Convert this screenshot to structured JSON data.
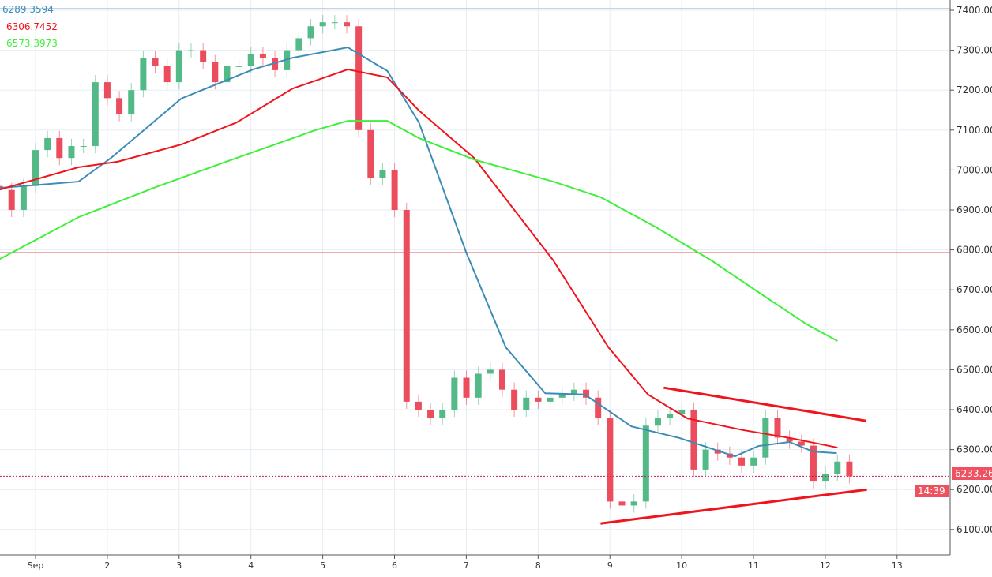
{
  "chart_data": {
    "type": "candlestick",
    "title": "",
    "xaxis": {
      "ticks": [
        {
          "day": 1,
          "label": "Sep"
        },
        {
          "day": 2,
          "label": "2"
        },
        {
          "day": 3,
          "label": "3"
        },
        {
          "day": 4,
          "label": "4"
        },
        {
          "day": 5,
          "label": "5"
        },
        {
          "day": 6,
          "label": "6"
        },
        {
          "day": 7,
          "label": "7"
        },
        {
          "day": 8,
          "label": "8"
        },
        {
          "day": 9,
          "label": "9"
        },
        {
          "day": 10,
          "label": "10"
        },
        {
          "day": 11,
          "label": "11"
        },
        {
          "day": 12,
          "label": "12"
        },
        {
          "day": 13,
          "label": "13"
        }
      ],
      "range_days": [
        0.5,
        14.1
      ]
    },
    "yaxis": {
      "ticks": [
        "6100.00",
        "6200.00",
        "6300.00",
        "6400.00",
        "6500.00",
        "6600.00",
        "6700.00",
        "6800.00",
        "6900.00",
        "7000.00",
        "7100.00",
        "7200.00",
        "7300.00",
        "7400.00"
      ],
      "range": [
        6035,
        7426
      ]
    },
    "grid": true,
    "candles": {
      "start_day": 0.5,
      "step_days": 0.1667,
      "first_open": 6960,
      "closes": [
        6950,
        6900,
        6960,
        7050,
        7080,
        7030,
        7060,
        7060,
        7220,
        7180,
        7140,
        7200,
        7280,
        7260,
        7220,
        7300,
        7300,
        7270,
        7220,
        7260,
        7260,
        7290,
        7280,
        7250,
        7300,
        7330,
        7360,
        7370,
        7370,
        7360,
        7100,
        6980,
        7000,
        6900,
        6420,
        6400,
        6380,
        6400,
        6480,
        6430,
        6490,
        6500,
        6450,
        6400,
        6430,
        6420,
        6430,
        6440,
        6450,
        6430,
        6380,
        6170,
        6160,
        6170,
        6360,
        6380,
        6390,
        6400,
        6250,
        6300,
        6290,
        6280,
        6260,
        6280,
        6380,
        6330,
        6320,
        6310,
        6220,
        6240,
        6270,
        6233
      ]
    },
    "up_color": "#53b987",
    "down_color": "#eb4d5c",
    "series": [
      {
        "name": "6289.3594",
        "color": "#3d8cb5",
        "points": [
          [
            0.5,
            6955
          ],
          [
            1.6,
            6971
          ],
          [
            2.05,
            7030
          ],
          [
            3.03,
            7179
          ],
          [
            4.03,
            7252
          ],
          [
            4.58,
            7281
          ],
          [
            5.35,
            7307
          ],
          [
            5.9,
            7248
          ],
          [
            6.34,
            7119
          ],
          [
            7.0,
            6793
          ],
          [
            7.55,
            6556
          ],
          [
            8.1,
            6441
          ],
          [
            8.65,
            6438
          ],
          [
            9.3,
            6358
          ],
          [
            9.97,
            6329
          ],
          [
            10.74,
            6283
          ],
          [
            11.07,
            6309
          ],
          [
            11.5,
            6319
          ],
          [
            11.83,
            6295
          ],
          [
            12.16,
            6291
          ]
        ]
      },
      {
        "name": "6306.7452",
        "color": "#f0151d",
        "points": [
          [
            0.5,
            6951
          ],
          [
            1.6,
            7007
          ],
          [
            2.15,
            7021
          ],
          [
            3.03,
            7064
          ],
          [
            3.8,
            7119
          ],
          [
            4.58,
            7204
          ],
          [
            5.35,
            7252
          ],
          [
            5.9,
            7232
          ],
          [
            6.34,
            7149
          ],
          [
            7.11,
            7030
          ],
          [
            8.21,
            6774
          ],
          [
            8.98,
            6556
          ],
          [
            9.53,
            6438
          ],
          [
            10.08,
            6378
          ],
          [
            10.85,
            6349
          ],
          [
            11.51,
            6329
          ],
          [
            12.17,
            6305
          ]
        ]
      },
      {
        "name": "6573.3973",
        "color": "#3ff03a",
        "points": [
          [
            0.5,
            6777
          ],
          [
            1.6,
            6882
          ],
          [
            2.7,
            6959
          ],
          [
            3.8,
            7030
          ],
          [
            4.9,
            7100
          ],
          [
            5.35,
            7123
          ],
          [
            5.9,
            7123
          ],
          [
            6.34,
            7080
          ],
          [
            7.11,
            7026
          ],
          [
            8.21,
            6971
          ],
          [
            8.87,
            6932
          ],
          [
            9.64,
            6857
          ],
          [
            10.41,
            6774
          ],
          [
            11.07,
            6694
          ],
          [
            11.73,
            6615
          ],
          [
            12.17,
            6572
          ]
        ]
      }
    ],
    "horizontal_lines": [
      {
        "price": 6793,
        "color": "#e01b1b"
      },
      {
        "price": 7404,
        "color": "#8aa8c0"
      }
    ],
    "trendlines": [
      {
        "from": [
          9.75,
          6455
        ],
        "to": [
          12.57,
          6372
        ],
        "color": "#f0151d"
      },
      {
        "from": [
          8.87,
          6115
        ],
        "to": [
          12.58,
          6200
        ],
        "color": "#f0151d"
      }
    ],
    "last_price": {
      "value": 6233.26,
      "label": "6233.26",
      "countdown": "14:39"
    }
  }
}
